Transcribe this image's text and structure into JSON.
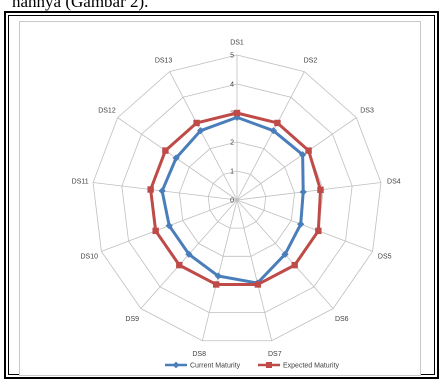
{
  "caption": "nahnya (Gambar 2).",
  "chart_data": {
    "type": "radar",
    "categories": [
      "DS1",
      "DS2",
      "DS3",
      "DS4",
      "DS5",
      "DS6",
      "DS7",
      "DS8",
      "DS9",
      "DS10",
      "DS11",
      "DS12",
      "DS13"
    ],
    "rlim": [
      0,
      5
    ],
    "ticks": [
      "0",
      "1",
      "2",
      "3",
      "4",
      "5"
    ],
    "grid": true,
    "legend_position": "bottom",
    "series": [
      {
        "name": "Current Maturity",
        "color": "#4a7ebb",
        "marker": "diamond",
        "values": [
          2.85,
          2.7,
          2.75,
          2.3,
          2.35,
          2.5,
          2.95,
          2.7,
          2.5,
          2.5,
          2.6,
          2.55,
          2.7
        ]
      },
      {
        "name": "Expected Maturity",
        "color": "#be4b48",
        "marker": "square",
        "values": [
          3.0,
          3.0,
          3.0,
          2.9,
          3.0,
          3.0,
          3.0,
          3.0,
          3.0,
          3.0,
          3.0,
          3.0,
          3.0
        ]
      }
    ]
  }
}
